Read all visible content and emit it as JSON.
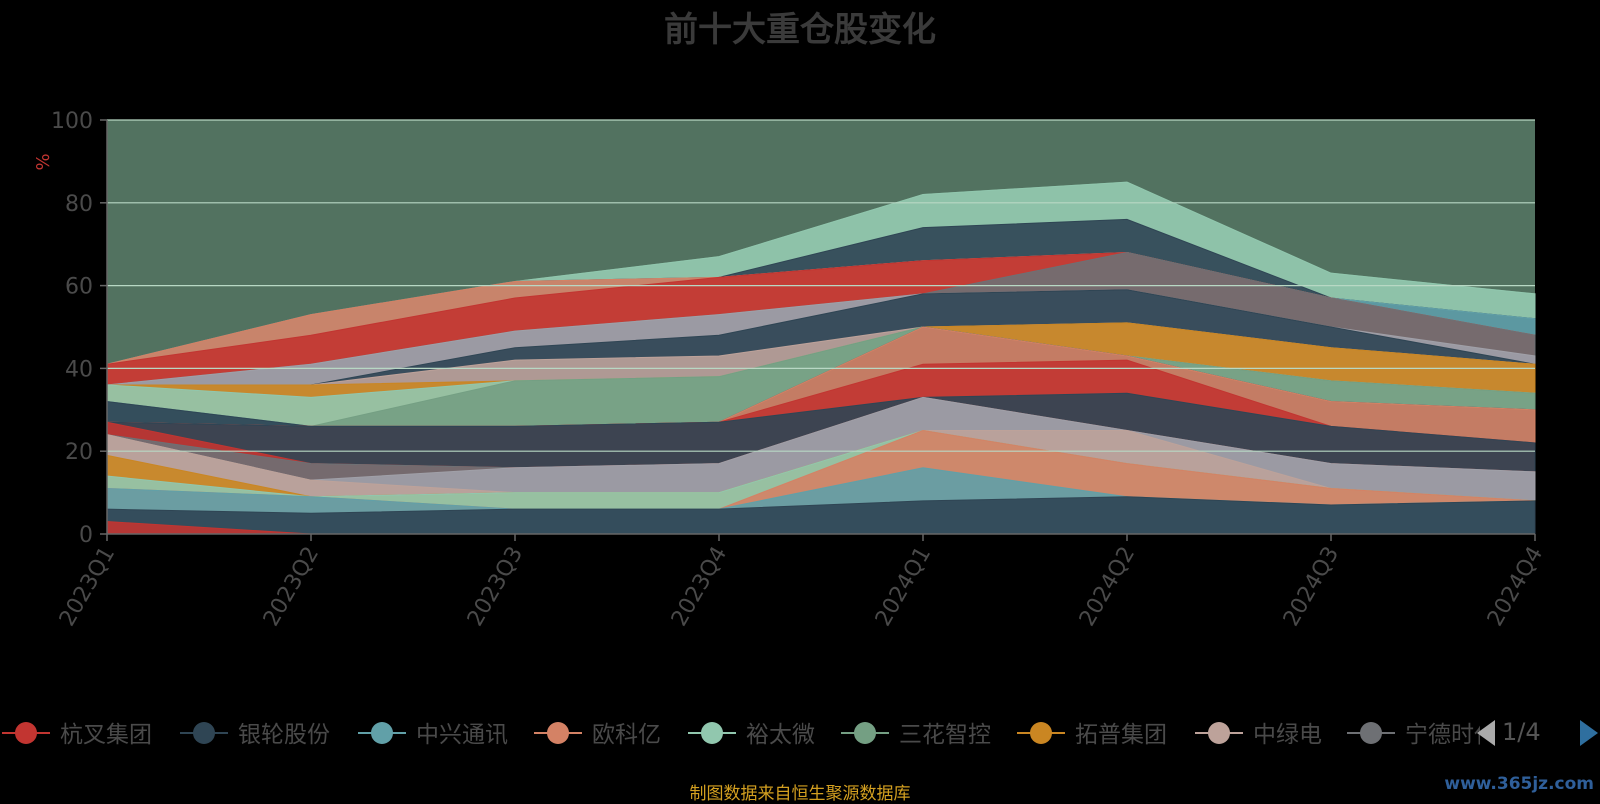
{
  "title": "前十大重仓股变化",
  "source_note": "制图数据来自恒生聚源数据库",
  "watermark": "www.365jz.com",
  "legend_page": "1/4",
  "chart_data": {
    "type": "area",
    "stacked": false,
    "ylabel": "%",
    "ylim": [
      0,
      100
    ],
    "yticks": [
      0,
      20,
      40,
      60,
      80,
      100
    ],
    "grid": true,
    "legend_position": "bottom",
    "categories": [
      "2023Q1",
      "2023Q2",
      "2023Q3",
      "2023Q4",
      "2024Q1",
      "2024Q2",
      "2024Q3",
      "2024Q4"
    ],
    "series": [
      {
        "name": "杭叉集团",
        "color": "#c23531"
      },
      {
        "name": "银轮股份",
        "color": "#2f4554"
      },
      {
        "name": "中兴通讯",
        "color": "#61a0a8"
      },
      {
        "name": "欧科亿",
        "color": "#d48265"
      },
      {
        "name": "裕太微",
        "color": "#91c7ae"
      },
      {
        "name": "三花智控",
        "color": "#749f83"
      },
      {
        "name": "拓普集团",
        "color": "#ca8622"
      },
      {
        "name": "中绿电",
        "color": "#bda29a"
      },
      {
        "name": "宁德时代",
        "color": "#6e7074"
      }
    ],
    "bands": [
      {
        "color": "#749f83",
        "values": [
          41,
          53,
          61,
          67,
          82,
          85,
          63,
          58
        ]
      },
      {
        "color": "#91c7ae",
        "values": [
          41,
          53,
          61,
          67,
          82,
          85,
          63,
          58
        ]
      },
      {
        "color": "#2f4554",
        "values": [
          41,
          53,
          61,
          62,
          74,
          76,
          57,
          52
        ]
      },
      {
        "color": "#61a0a8",
        "values": [
          41,
          53,
          61,
          62,
          66,
          68,
          57,
          52
        ]
      },
      {
        "color": "#d48265",
        "values": [
          41,
          53,
          61,
          62,
          66,
          68,
          57,
          48
        ]
      },
      {
        "color": "#c23531",
        "values": [
          41,
          48,
          57,
          62,
          66,
          68,
          57,
          48
        ]
      },
      {
        "color": "#6e7074",
        "values": [
          36,
          41,
          49,
          53,
          58,
          68,
          57,
          48
        ]
      },
      {
        "color": "#a0a0a8",
        "values": [
          36,
          41,
          49,
          53,
          58,
          59,
          50,
          43
        ]
      },
      {
        "color": "#2f4554",
        "values": [
          36,
          36,
          45,
          48,
          58,
          59,
          50,
          41
        ]
      },
      {
        "color": "#bda29a",
        "values": [
          36,
          36,
          42,
          43,
          50,
          51,
          45,
          41
        ]
      },
      {
        "color": "#ca8622",
        "values": [
          36,
          36,
          37,
          38,
          50,
          51,
          45,
          41
        ]
      },
      {
        "color": "#91c7ae",
        "values": [
          36,
          33,
          37,
          38,
          50,
          43,
          37,
          34
        ]
      },
      {
        "color": "#749f83",
        "values": [
          32,
          26,
          37,
          38,
          50,
          43,
          37,
          34
        ]
      },
      {
        "color": "#61a0a8",
        "values": [
          32,
          26,
          26,
          27,
          50,
          43,
          32,
          30
        ]
      },
      {
        "color": "#2f4554",
        "values": [
          32,
          26,
          26,
          27,
          50,
          43,
          32,
          30
        ]
      },
      {
        "color": "#d48265",
        "values": [
          27,
          26,
          26,
          27,
          50,
          43,
          32,
          30
        ]
      },
      {
        "color": "#c23531",
        "values": [
          27,
          26,
          26,
          27,
          41,
          42,
          26,
          22
        ]
      },
      {
        "color": "#2f4554",
        "values": [
          27,
          26,
          26,
          27,
          33,
          34,
          26,
          22
        ]
      },
      {
        "color": "#c23531",
        "values": [
          27,
          17,
          16,
          17,
          33,
          25,
          17,
          15
        ]
      },
      {
        "color": "#6e7074",
        "values": [
          24,
          17,
          16,
          17,
          33,
          25,
          17,
          15
        ]
      },
      {
        "color": "#a0a0a8",
        "values": [
          24,
          13,
          16,
          17,
          33,
          25,
          17,
          15
        ]
      },
      {
        "color": "#bda29a",
        "values": [
          24,
          13,
          10,
          10,
          25,
          25,
          11,
          8
        ]
      },
      {
        "color": "#ca8622",
        "values": [
          19,
          9,
          10,
          10,
          25,
          17,
          11,
          8
        ]
      },
      {
        "color": "#91c7ae",
        "values": [
          14,
          9,
          10,
          10,
          25,
          17,
          11,
          8
        ]
      },
      {
        "color": "#d48265",
        "values": [
          11,
          9,
          6,
          6,
          25,
          17,
          11,
          8
        ]
      },
      {
        "color": "#61a0a8",
        "values": [
          11,
          9,
          6,
          6,
          16,
          9,
          7,
          8
        ]
      },
      {
        "color": "#2f4554",
        "values": [
          6,
          5,
          6,
          6,
          8,
          9,
          7,
          8
        ]
      },
      {
        "color": "#c23531",
        "values": [
          3,
          0,
          0,
          0,
          0,
          0,
          0,
          0
        ]
      }
    ]
  }
}
